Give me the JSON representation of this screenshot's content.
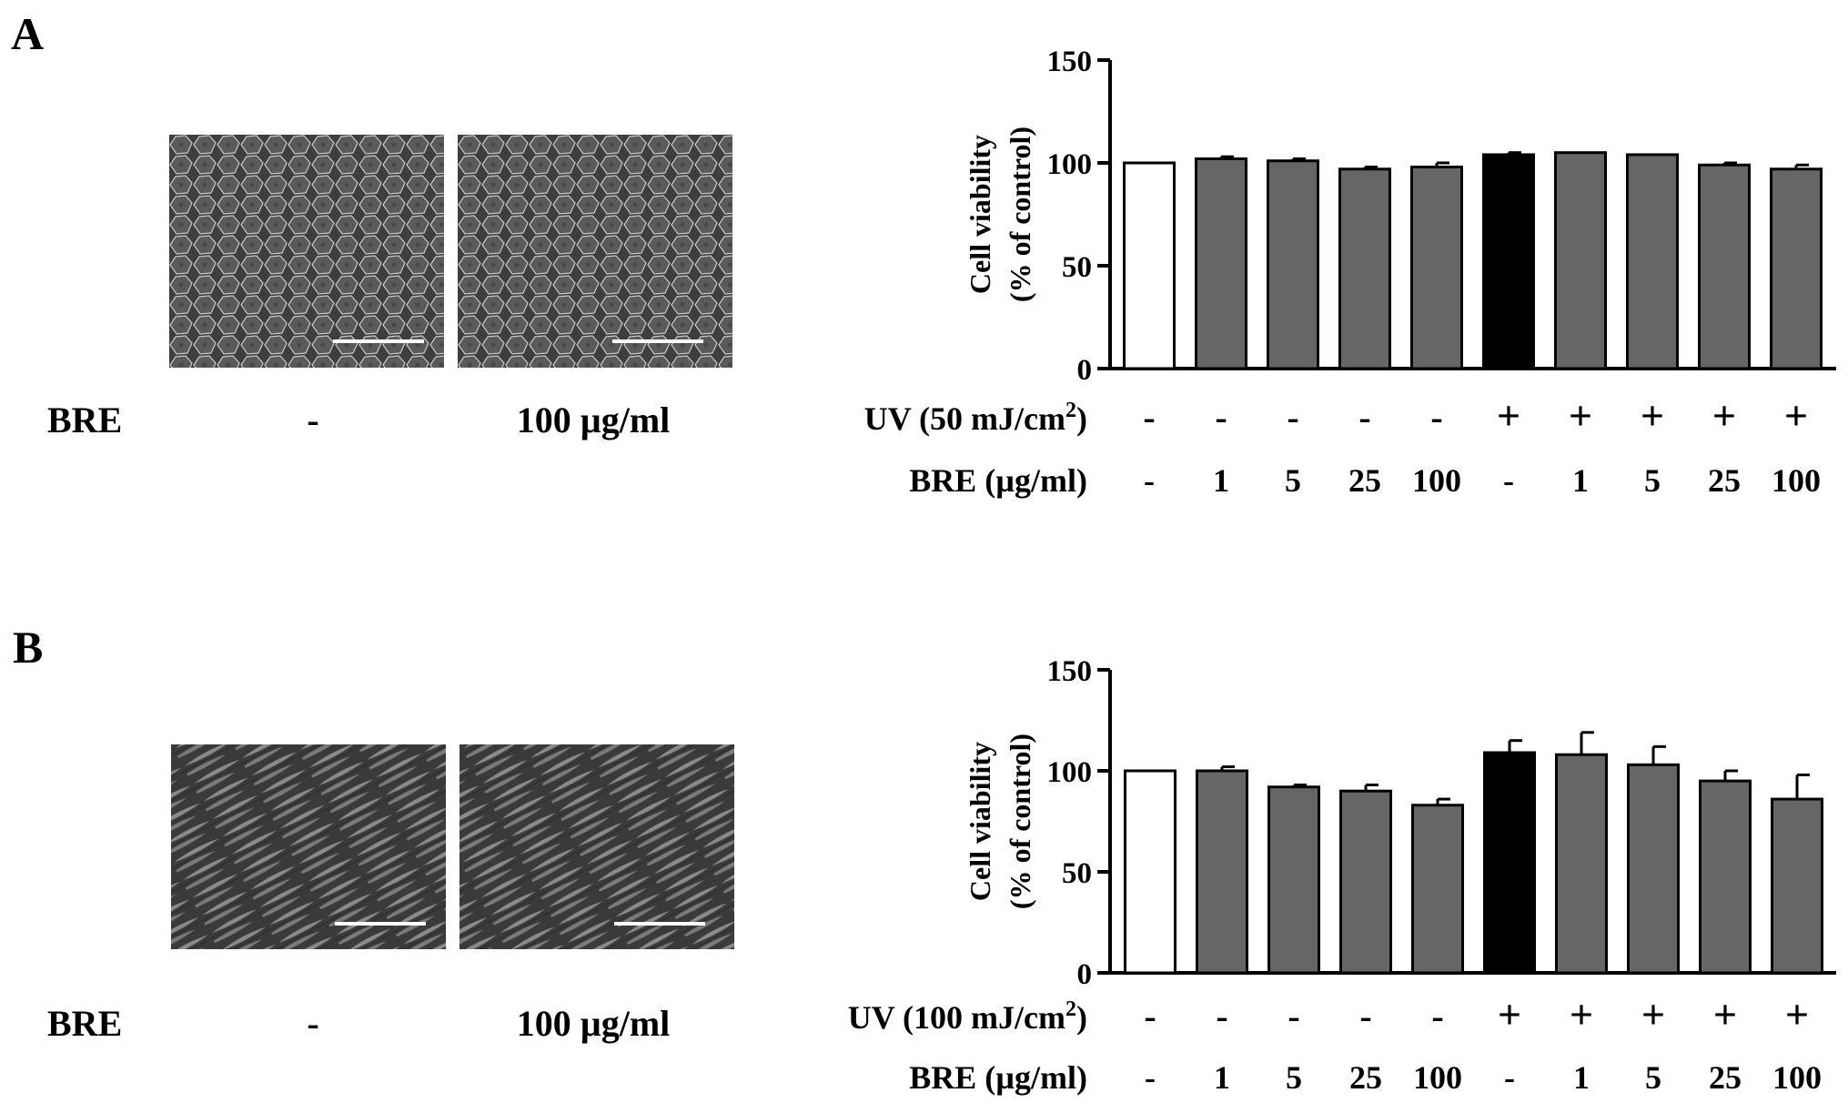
{
  "panels": [
    {
      "letter": "A",
      "micrographs": [
        {
          "texture": "cells-cobblestone",
          "condition": "-"
        },
        {
          "texture": "cells-cobblestone",
          "condition": "100 µg/ml"
        }
      ],
      "treatment_label": "BRE",
      "chart_data": {
        "type": "bar",
        "ylabel_line1": "Cell viability",
        "ylabel_line2": "(% of control)",
        "ylim": [
          0,
          150
        ],
        "yticks": [
          0,
          50,
          100,
          150
        ],
        "uv_label_main": "UV (50 mJ/cm",
        "uv_label_sup": "2",
        "uv_label_close": ")",
        "bre_label": "BRE (µg/ml)",
        "uv_signs": [
          "-",
          "-",
          "-",
          "-",
          "-",
          "+",
          "+",
          "+",
          "+",
          "+"
        ],
        "bre_doses": [
          "-",
          "1",
          "5",
          "25",
          "100",
          "-",
          "1",
          "5",
          "25",
          "100"
        ],
        "values": [
          100,
          102,
          101,
          97,
          98,
          104,
          105,
          104,
          99,
          97
        ],
        "errors": [
          0,
          1,
          1,
          1,
          2,
          1,
          0,
          0,
          1,
          2
        ],
        "bar_colors": [
          "#ffffff",
          "#666666",
          "#666666",
          "#666666",
          "#666666",
          "#000000",
          "#666666",
          "#666666",
          "#666666",
          "#666666"
        ]
      }
    },
    {
      "letter": "B",
      "micrographs": [
        {
          "texture": "cells-spindle",
          "condition": "-"
        },
        {
          "texture": "cells-spindle",
          "condition": "100 µg/ml"
        }
      ],
      "treatment_label": "BRE",
      "chart_data": {
        "type": "bar",
        "ylabel_line1": "Cell viability",
        "ylabel_line2": "(% of control)",
        "ylim": [
          0,
          150
        ],
        "yticks": [
          0,
          50,
          100,
          150
        ],
        "uv_label_main": "UV (100 mJ/cm",
        "uv_label_sup": "2",
        "uv_label_close": ")",
        "bre_label": "BRE (µg/ml)",
        "uv_signs": [
          "-",
          "-",
          "-",
          "-",
          "-",
          "+",
          "+",
          "+",
          "+",
          "+"
        ],
        "bre_doses": [
          "-",
          "1",
          "5",
          "25",
          "100",
          "-",
          "1",
          "5",
          "25",
          "100"
        ],
        "values": [
          100,
          100,
          92,
          90,
          83,
          109,
          108,
          103,
          95,
          86
        ],
        "errors": [
          0,
          2,
          1,
          3,
          3,
          6,
          11,
          9,
          5,
          12
        ],
        "bar_colors": [
          "#ffffff",
          "#666666",
          "#666666",
          "#666666",
          "#666666",
          "#000000",
          "#666666",
          "#666666",
          "#666666",
          "#666666"
        ]
      }
    }
  ]
}
